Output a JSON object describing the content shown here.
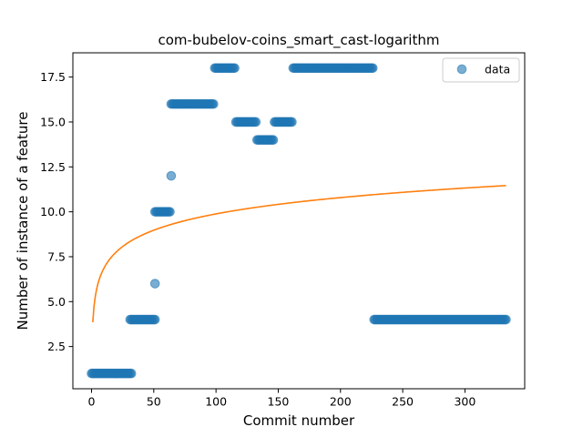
{
  "chart_data": {
    "type": "scatter",
    "title": "com-bubelov-coins_smart_cast-logarithm",
    "xlabel": "Commit number",
    "ylabel": "Number of instance of a feature",
    "xlim": [
      -15,
      348
    ],
    "ylim": [
      0.15,
      18.85
    ],
    "xticks": [
      0,
      50,
      100,
      150,
      200,
      250,
      300
    ],
    "yticks": [
      2.5,
      5.0,
      7.5,
      10.0,
      12.5,
      15.0,
      17.5
    ],
    "ytick_labels": [
      "2.5",
      "5.0",
      "7.5",
      "10.0",
      "12.5",
      "15.0",
      "17.5"
    ],
    "grid": false,
    "legend_position": "top-right",
    "series": [
      {
        "name": "data",
        "kind": "scatter",
        "color": "#1f77b4",
        "alpha": 0.6,
        "segments": [
          {
            "x_from": 0,
            "x_to": 32,
            "y": 1
          },
          {
            "x_from": 31,
            "x_to": 51,
            "y": 4
          },
          {
            "x_from": 51,
            "x_to": 51,
            "y": 6
          },
          {
            "x_from": 51,
            "x_to": 63,
            "y": 10
          },
          {
            "x_from": 64,
            "x_to": 64,
            "y": 12
          },
          {
            "x_from": 64,
            "x_to": 98,
            "y": 16
          },
          {
            "x_from": 99,
            "x_to": 115,
            "y": 18
          },
          {
            "x_from": 116,
            "x_to": 132,
            "y": 15
          },
          {
            "x_from": 133,
            "x_to": 146,
            "y": 14
          },
          {
            "x_from": 147,
            "x_to": 161,
            "y": 15
          },
          {
            "x_from": 162,
            "x_to": 226,
            "y": 18
          },
          {
            "x_from": 227,
            "x_to": 333,
            "y": 4
          }
        ]
      },
      {
        "name": "",
        "kind": "line",
        "color": "#ff7f0e",
        "model": "logarithmic",
        "a": 1.31,
        "b": 3.85,
        "x_from": 1,
        "x_to": 333
      }
    ]
  }
}
